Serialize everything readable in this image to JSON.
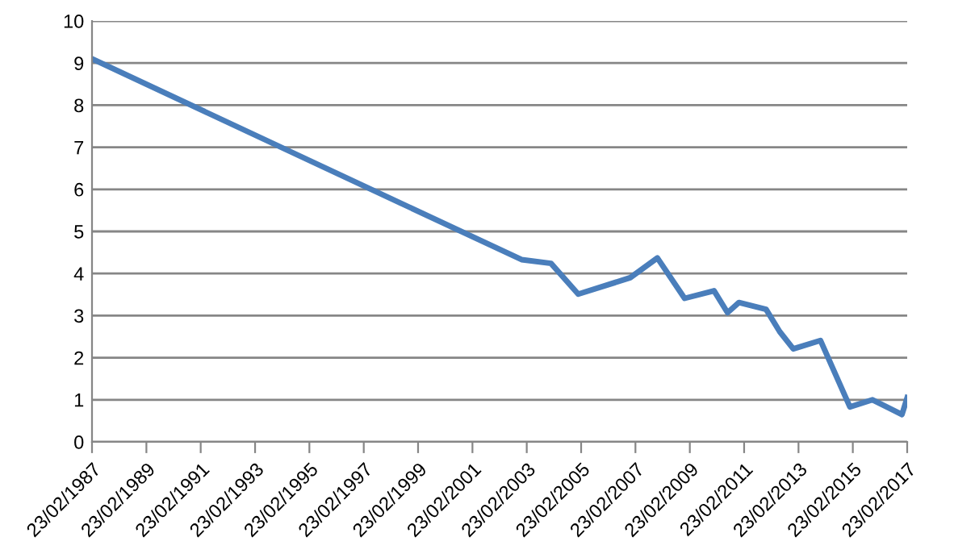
{
  "chart_data": {
    "type": "line",
    "x": [
      "1987-02-23",
      "2002-12-15",
      "2004-01-15",
      "2005-01-15",
      "2006-12-15",
      "2007-12-15",
      "2008-12-15",
      "2010-01-15",
      "2010-07-15",
      "2010-12-15",
      "2011-12-15",
      "2012-06-15",
      "2012-12-15",
      "2013-12-15",
      "2015-01-15",
      "2015-11-15",
      "2016-12-15",
      "2017-02-23"
    ],
    "series": [
      {
        "color": "#4a7ebb",
        "values": [
          9.1,
          4.33,
          4.24,
          3.51,
          3.9,
          4.37,
          3.41,
          3.59,
          3.07,
          3.31,
          3.15,
          2.62,
          2.21,
          2.41,
          0.83,
          1.0,
          0.65,
          1.05
        ]
      }
    ],
    "xlim": [
      "1987-02-23",
      "2017-02-23"
    ],
    "xticks": [
      {
        "value": "1987-02-23",
        "label": "23/02/1987"
      },
      {
        "value": "1989-02-23",
        "label": "23/02/1989"
      },
      {
        "value": "1991-02-23",
        "label": "23/02/1991"
      },
      {
        "value": "1993-02-23",
        "label": "23/02/1993"
      },
      {
        "value": "1995-02-23",
        "label": "23/02/1995"
      },
      {
        "value": "1997-02-23",
        "label": "23/02/1997"
      },
      {
        "value": "1999-02-23",
        "label": "23/02/1999"
      },
      {
        "value": "2001-02-23",
        "label": "23/02/2001"
      },
      {
        "value": "2003-02-23",
        "label": "23/02/2003"
      },
      {
        "value": "2005-02-23",
        "label": "23/02/2005"
      },
      {
        "value": "2007-02-23",
        "label": "23/02/2007"
      },
      {
        "value": "2009-02-23",
        "label": "23/02/2009"
      },
      {
        "value": "2011-02-23",
        "label": "23/02/2011"
      },
      {
        "value": "2013-02-23",
        "label": "23/02/2013"
      },
      {
        "value": "2015-02-23",
        "label": "23/02/2015"
      },
      {
        "value": "2017-02-23",
        "label": "23/02/2017"
      }
    ],
    "ylim": [
      0,
      10
    ],
    "yticks": [
      0,
      1,
      2,
      3,
      4,
      5,
      6,
      7,
      8,
      9,
      10
    ],
    "grid": "y",
    "marker": "none",
    "line_style": "solid"
  }
}
